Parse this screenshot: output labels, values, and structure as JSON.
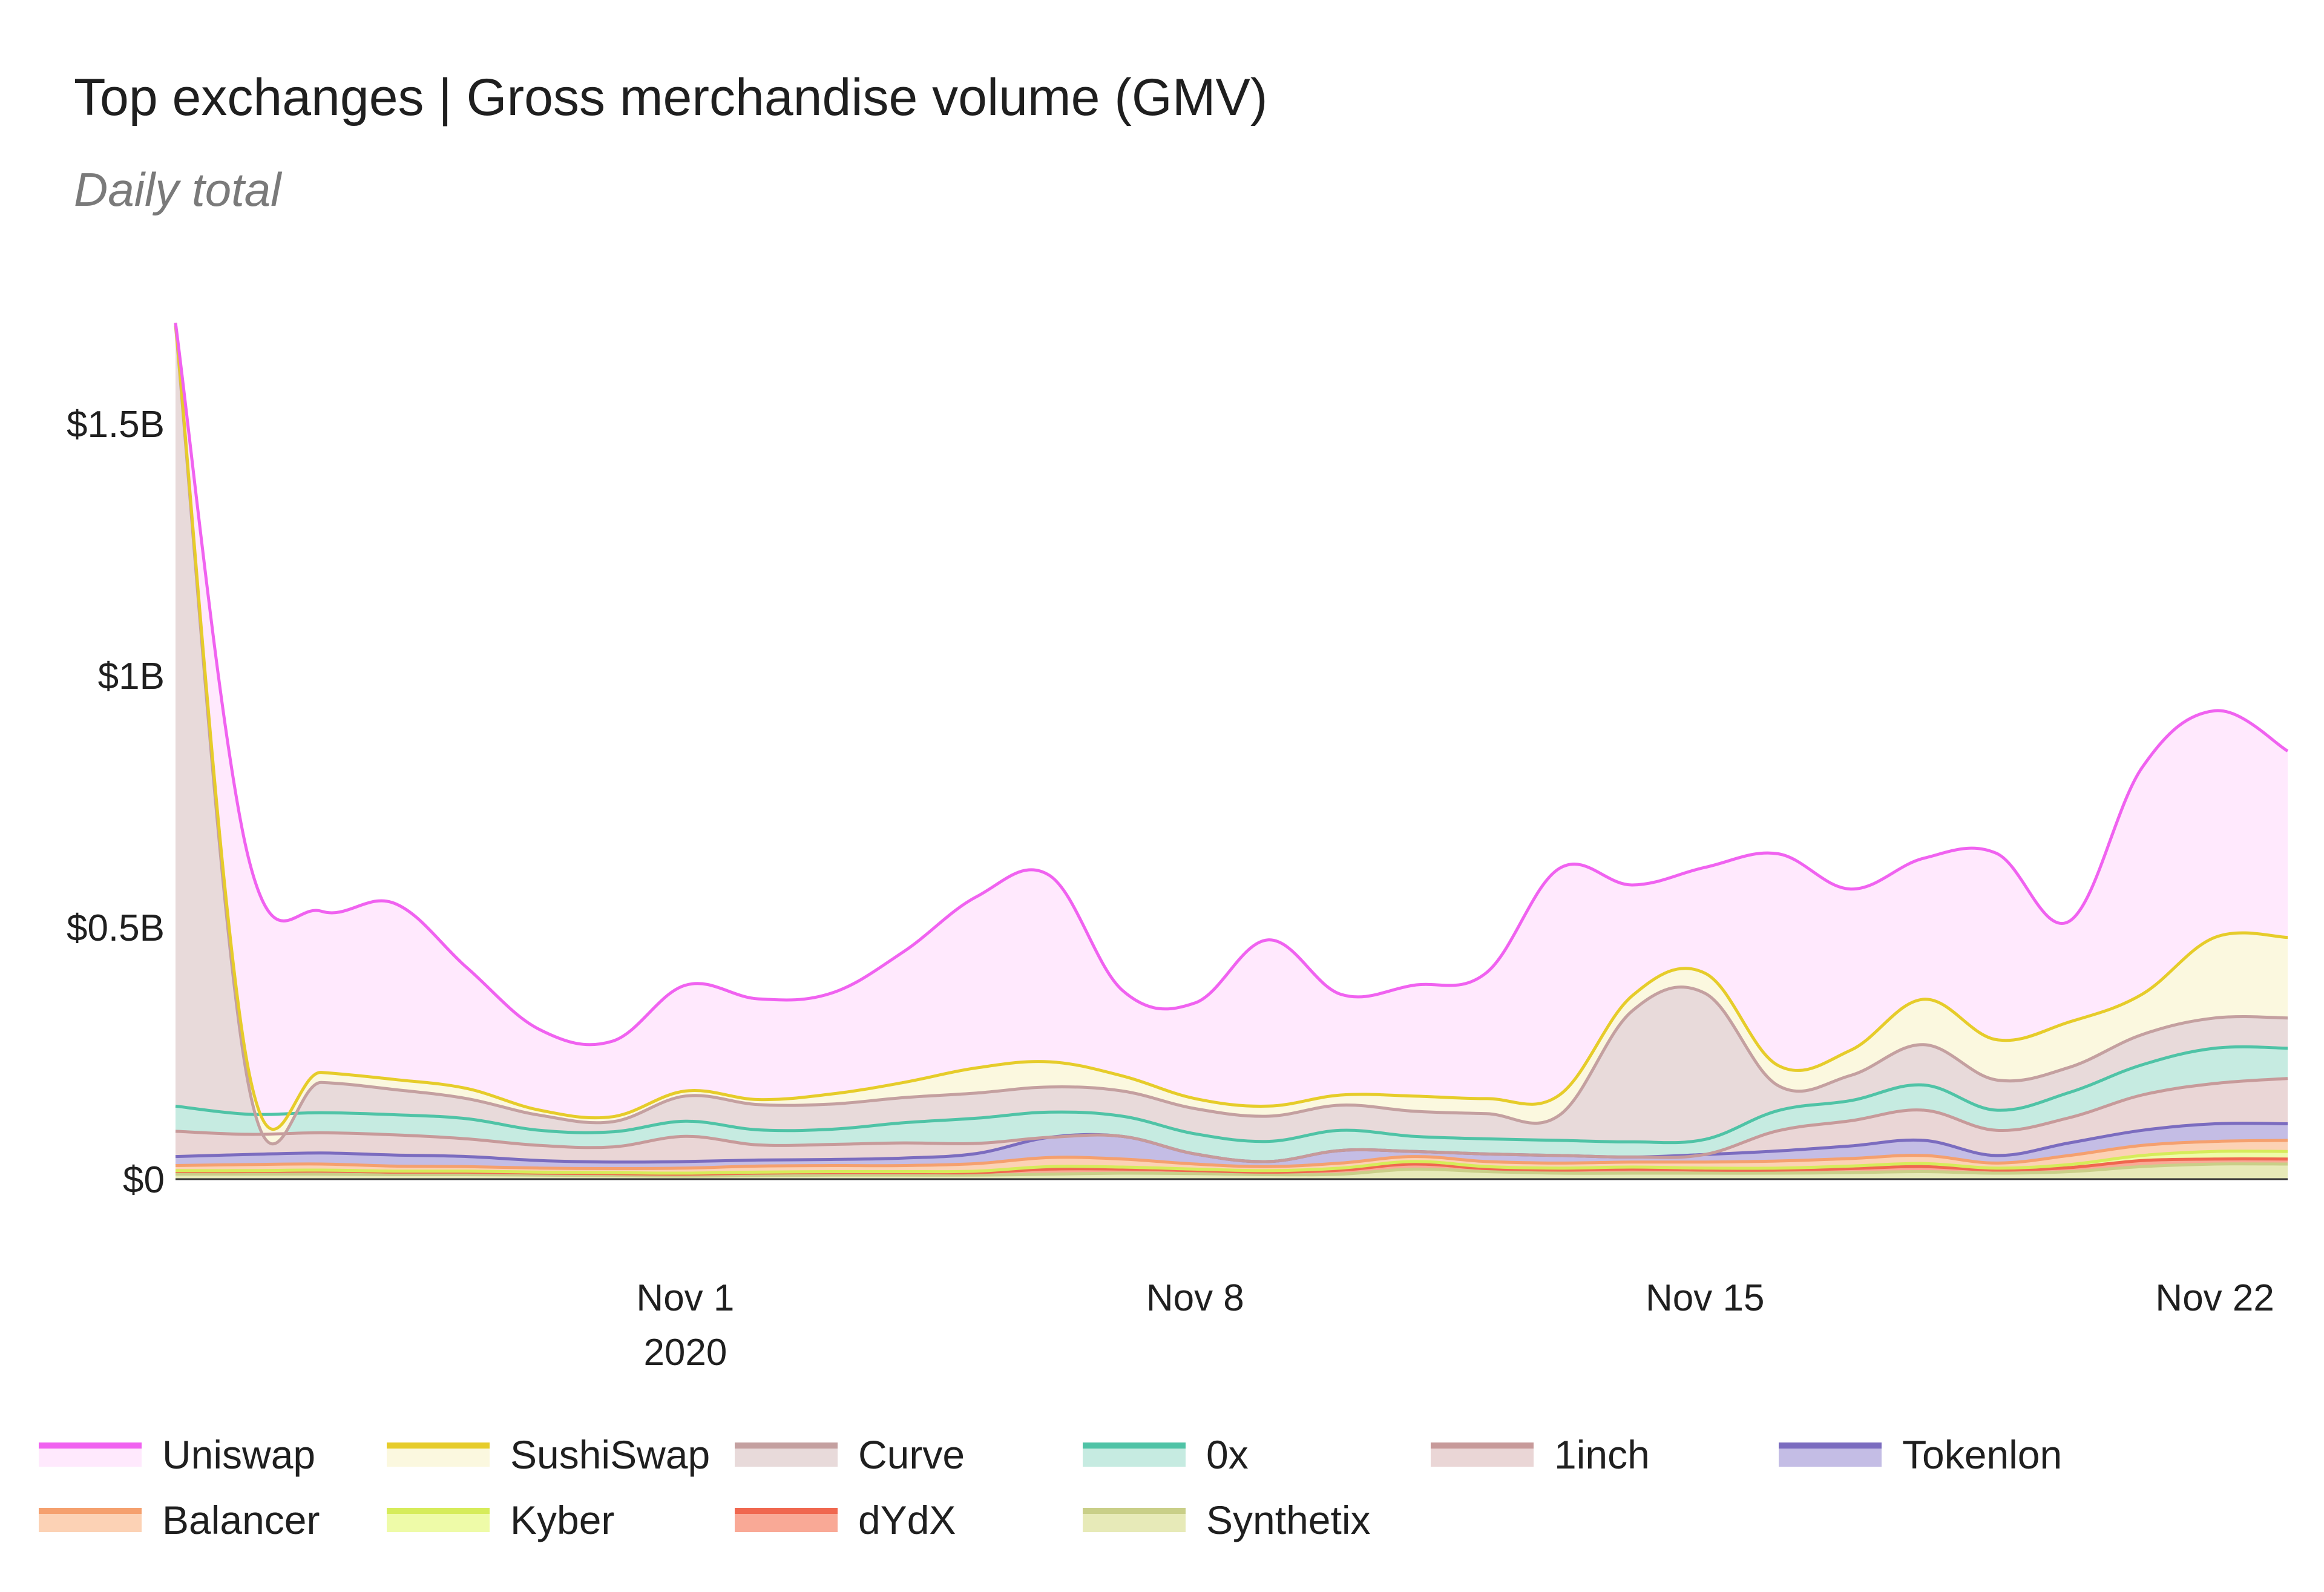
{
  "chart_data": {
    "type": "area",
    "stacked": true,
    "title": "Top exchanges | Gross merchandise volume (GMV)",
    "subtitle": "Daily total",
    "xlabel": "",
    "ylabel": "",
    "ylim": [
      0,
      1.65
    ],
    "y_unit": "billion USD",
    "y_ticks": [
      {
        "value": 0,
        "label": "$0"
      },
      {
        "value": 0.5,
        "label": "$0.5B"
      },
      {
        "value": 1,
        "label": "$1B"
      },
      {
        "value": 1.5,
        "label": "$1.5B"
      }
    ],
    "x_ticks": [
      {
        "index": 7,
        "label": "Nov 1",
        "sublabel": "2020"
      },
      {
        "index": 14,
        "label": "Nov 8",
        "sublabel": ""
      },
      {
        "index": 21,
        "label": "Nov 15",
        "sublabel": ""
      },
      {
        "index": 28,
        "label": "Nov 22",
        "sublabel": ""
      }
    ],
    "x": [
      "Oct 25",
      "Oct 26",
      "Oct 27",
      "Oct 28",
      "Oct 29",
      "Oct 30",
      "Oct 31",
      "Nov 1",
      "Nov 2",
      "Nov 3",
      "Nov 4",
      "Nov 5",
      "Nov 6",
      "Nov 7",
      "Nov 8",
      "Nov 9",
      "Nov 10",
      "Nov 11",
      "Nov 12",
      "Nov 13",
      "Nov 14",
      "Nov 15",
      "Nov 16",
      "Nov 17",
      "Nov 18",
      "Nov 19",
      "Nov 20",
      "Nov 21",
      "Nov 22",
      "Nov 23"
    ],
    "series": [
      {
        "name": "Synthetix",
        "line": "#c9cf88",
        "fill": "#e7eab8",
        "values": [
          0.01,
          0.01,
          0.01,
          0.009,
          0.009,
          0.008,
          0.007,
          0.006,
          0.007,
          0.008,
          0.008,
          0.008,
          0.01,
          0.012,
          0.011,
          0.009,
          0.01,
          0.02,
          0.015,
          0.012,
          0.012,
          0.012,
          0.012,
          0.013,
          0.015,
          0.012,
          0.015,
          0.025,
          0.03,
          0.03
        ]
      },
      {
        "name": "dYdX",
        "line": "#f0674f",
        "fill": "#f9a996",
        "values": [
          0.005,
          0.005,
          0.006,
          0.005,
          0.005,
          0.004,
          0.004,
          0.004,
          0.005,
          0.005,
          0.005,
          0.005,
          0.01,
          0.008,
          0.006,
          0.005,
          0.008,
          0.01,
          0.006,
          0.006,
          0.008,
          0.006,
          0.006,
          0.008,
          0.01,
          0.006,
          0.008,
          0.012,
          0.01,
          0.01
        ]
      },
      {
        "name": "Kyber",
        "line": "#d6ec5a",
        "fill": "#eefba8",
        "values": [
          0.002,
          0.002,
          0.002,
          0.002,
          0.002,
          0.002,
          0.002,
          0.002,
          0.002,
          0.002,
          0.002,
          0.003,
          0.005,
          0.004,
          0.003,
          0.003,
          0.004,
          0.005,
          0.004,
          0.004,
          0.004,
          0.004,
          0.004,
          0.005,
          0.006,
          0.004,
          0.006,
          0.01,
          0.015,
          0.015
        ]
      },
      {
        "name": "Balancer",
        "line": "#f5a06e",
        "fill": "#fcd2b5",
        "values": [
          0.01,
          0.012,
          0.012,
          0.01,
          0.009,
          0.008,
          0.008,
          0.01,
          0.012,
          0.012,
          0.012,
          0.015,
          0.018,
          0.016,
          0.01,
          0.008,
          0.01,
          0.01,
          0.01,
          0.01,
          0.01,
          0.012,
          0.014,
          0.015,
          0.016,
          0.01,
          0.018,
          0.02,
          0.02,
          0.022
        ]
      },
      {
        "name": "Tokenlon",
        "line": "#7b6cbf",
        "fill": "#c4bde5",
        "values": [
          0.018,
          0.02,
          0.022,
          0.022,
          0.02,
          0.015,
          0.013,
          0.013,
          0.012,
          0.012,
          0.015,
          0.02,
          0.04,
          0.045,
          0.02,
          0.01,
          0.025,
          0.01,
          0.015,
          0.015,
          0.01,
          0.015,
          0.02,
          0.025,
          0.03,
          0.015,
          0.025,
          0.03,
          0.035,
          0.033
        ]
      },
      {
        "name": "1inch",
        "line": "#c79a9a",
        "fill": "#ead6d6",
        "values": [
          0.05,
          0.04,
          0.04,
          0.04,
          0.035,
          0.03,
          0.03,
          0.05,
          0.03,
          0.03,
          0.03,
          0.02,
          0.0,
          0.0,
          0.0,
          0.0,
          0.0,
          0.0,
          0.0,
          0.0,
          0.0,
          0.0,
          0.04,
          0.05,
          0.06,
          0.05,
          0.05,
          0.07,
          0.08,
          0.09
        ]
      },
      {
        "name": "0x",
        "line": "#4fc3a6",
        "fill": "#c6ebe1",
        "values": [
          0.05,
          0.04,
          0.04,
          0.04,
          0.04,
          0.03,
          0.03,
          0.03,
          0.03,
          0.03,
          0.04,
          0.05,
          0.05,
          0.04,
          0.04,
          0.04,
          0.04,
          0.03,
          0.03,
          0.03,
          0.03,
          0.03,
          0.04,
          0.04,
          0.05,
          0.04,
          0.05,
          0.06,
          0.07,
          0.06
        ]
      },
      {
        "name": "Curve",
        "line": "#c4a0a0",
        "fill": "#e8dada",
        "values": [
          1.55,
          0.06,
          0.06,
          0.05,
          0.04,
          0.03,
          0.02,
          0.05,
          0.05,
          0.05,
          0.05,
          0.05,
          0.05,
          0.05,
          0.05,
          0.05,
          0.05,
          0.05,
          0.05,
          0.05,
          0.26,
          0.29,
          0.05,
          0.05,
          0.08,
          0.06,
          0.05,
          0.06,
          0.06,
          0.06
        ]
      },
      {
        "name": "SushiSwap",
        "line": "#e6cc2a",
        "fill": "#fbf8df",
        "values": [
          0.01,
          0.03,
          0.02,
          0.02,
          0.02,
          0.01,
          0.01,
          0.01,
          0.01,
          0.02,
          0.03,
          0.05,
          0.05,
          0.03,
          0.02,
          0.02,
          0.02,
          0.03,
          0.03,
          0.04,
          0.03,
          0.04,
          0.04,
          0.05,
          0.09,
          0.08,
          0.09,
          0.08,
          0.16,
          0.16
        ]
      },
      {
        "name": "Uniswap",
        "line": "#f062f0",
        "fill": "#ffe9fd",
        "values": [
          0.0,
          0.42,
          0.32,
          0.35,
          0.24,
          0.16,
          0.15,
          0.21,
          0.2,
          0.2,
          0.26,
          0.34,
          0.37,
          0.17,
          0.19,
          0.33,
          0.2,
          0.22,
          0.25,
          0.45,
          0.22,
          0.21,
          0.42,
          0.32,
          0.28,
          0.37,
          0.2,
          0.45,
          0.45,
          0.37
        ]
      }
    ]
  },
  "legend": {
    "items": [
      {
        "name": "Uniswap",
        "line": "#f062f0",
        "fill": "#ffe9fd"
      },
      {
        "name": "SushiSwap",
        "line": "#e6cc2a",
        "fill": "#fbf8df"
      },
      {
        "name": "Curve",
        "line": "#c4a0a0",
        "fill": "#e8dada"
      },
      {
        "name": "0x",
        "line": "#4fc3a6",
        "fill": "#c6ebe1"
      },
      {
        "name": "1inch",
        "line": "#c79a9a",
        "fill": "#ead6d6"
      },
      {
        "name": "Tokenlon",
        "line": "#7b6cbf",
        "fill": "#c4bde5"
      },
      {
        "name": "Balancer",
        "line": "#f5a06e",
        "fill": "#fcd2b5"
      },
      {
        "name": "Kyber",
        "line": "#d6ec5a",
        "fill": "#eefba8"
      },
      {
        "name": "dYdX",
        "line": "#f0674f",
        "fill": "#f9a996"
      },
      {
        "name": "Synthetix",
        "line": "#c9cf88",
        "fill": "#e7eab8"
      }
    ]
  }
}
